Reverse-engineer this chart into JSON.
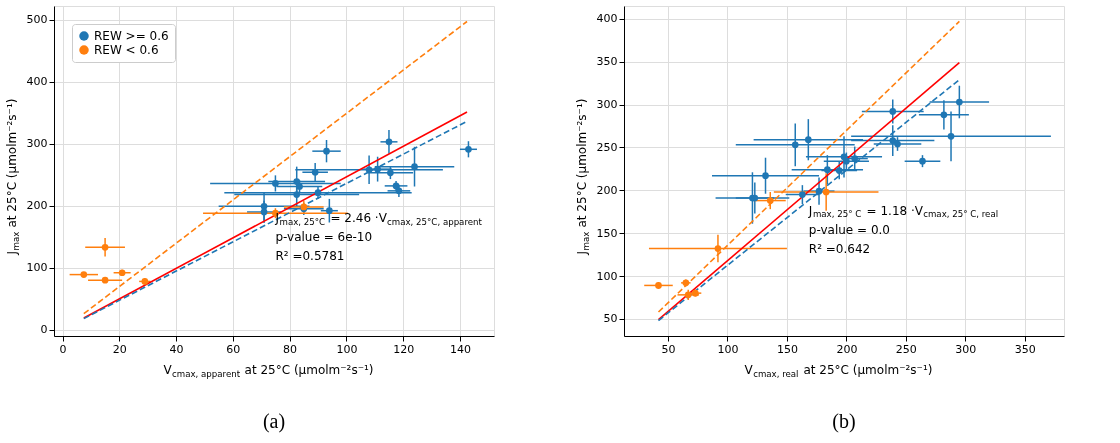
{
  "chart_data": [
    {
      "type": "scatter",
      "title": "(a)",
      "xlabel": "V$_{cmax, apparent}$ at 25°C (μmolm⁻²s⁻¹)",
      "ylabel": "J$_{max}$ at 25°C (μmolm⁻²s⁻¹)",
      "xlim": [
        -3,
        152
      ],
      "ylim": [
        -10,
        522
      ],
      "xticks": [
        0,
        20,
        40,
        60,
        80,
        100,
        120,
        140
      ],
      "yticks": [
        0,
        100,
        200,
        300,
        400,
        500
      ],
      "grid": true,
      "legend": "top left",
      "marker": "circle",
      "annotations": [
        {
          "text": "J$_{max, 25°C}$ = 2.46 ·V$_{cmax, 25°C, apparent}$",
          "x": 75,
          "y": 180
        },
        "p-value = 6e-10",
        "R² =0.5781"
      ],
      "series": [
        {
          "name": "REW >= 0.6",
          "type": "scatter",
          "color": "#1f77b4",
          "x": [
            115,
            93,
            143,
            89,
            108,
            111,
            115.5,
            124,
            75,
            82.5,
            83.5,
            82.5,
            90,
            117.5,
            118.5,
            71,
            71,
            85,
            94
          ],
          "values": [
            303,
            288,
            291,
            254,
            258,
            259,
            253,
            263,
            236,
            239,
            231,
            218,
            221,
            232,
            224,
            199,
            190,
            195,
            192
          ],
          "xerrors": [
            3,
            5,
            3,
            4.5,
            26,
            5,
            8,
            14,
            23,
            10,
            8,
            22,
            33,
            4,
            4,
            16,
            6,
            7,
            3
          ],
          "errors": [
            19,
            18,
            13,
            15,
            23,
            20,
            10,
            32,
            13,
            24,
            10,
            20,
            10,
            8,
            10,
            23,
            18,
            10,
            19
          ]
        },
        {
          "name": "REW < 0.6",
          "type": "scatter",
          "color": "#ff7f0e",
          "x": [
            15,
            7.5,
            15,
            21,
            29,
            75,
            85
          ],
          "values": [
            133,
            89,
            80,
            92,
            78,
            188,
            198
          ],
          "xerrors": [
            7,
            5,
            6,
            3,
            2,
            25.5,
            7
          ],
          "errors": [
            15,
            4,
            4,
            5,
            5,
            8,
            10
          ]
        },
        {
          "type": "line",
          "marker": "none",
          "color": "#ff0000",
          "line_style": "solid",
          "x": [
            7.5,
            142.5
          ],
          "values": [
            19,
            351
          ]
        },
        {
          "type": "line",
          "marker": "none",
          "color": "#1f77b4",
          "line_style": "dashed",
          "x": [
            7.5,
            142.5
          ],
          "values": [
            18,
            336
          ]
        },
        {
          "type": "line",
          "marker": "none",
          "color": "#ff7f0e",
          "line_style": "dashed",
          "x": [
            7.5,
            142.5
          ],
          "values": [
            26,
            497
          ]
        }
      ]
    },
    {
      "type": "scatter",
      "title": "(b)",
      "xlabel": "V$_{cmax, real}$ at 25°C (μmolm⁻²s⁻¹)",
      "ylabel": "J$_{max}$ at 25°C (μmolm⁻²s⁻¹)",
      "xlim": [
        13,
        383
      ],
      "ylim": [
        30,
        415
      ],
      "xticks": [
        50,
        100,
        150,
        200,
        250,
        300,
        350
      ],
      "yticks": [
        50,
        100,
        150,
        200,
        250,
        300,
        350,
        400
      ],
      "grid": true,
      "legend": "top left",
      "marker": "circle",
      "annotations": [
        "J$_{max, 25° C}$ = 1.18 ·V$_{cmax, 25° C, real}$",
        "p-value = 0.0",
        "R² =0.642"
      ],
      "series": [
        {
          "name": "REW >= 0.6",
          "type": "scatter",
          "color": "#1f77b4",
          "x": [
            239,
            295,
            282,
            288,
            239,
            243,
            157,
            168,
            198,
            207,
            200,
            184,
            194,
            264,
            132,
            121,
            123,
            163,
            177
          ],
          "values": [
            292,
            303,
            288,
            263,
            258,
            254,
            253,
            259,
            239,
            237,
            234,
            224,
            223,
            234,
            217,
            191,
            191,
            195,
            199
          ],
          "xerrors": [
            26,
            25,
            21,
            84,
            35,
            20,
            50,
            46,
            32,
            11,
            19,
            30,
            15,
            15,
            45,
            31,
            16,
            14,
            13
          ],
          "errors": [
            14,
            19,
            17,
            29,
            18,
            8,
            25,
            24,
            24,
            14,
            10,
            17,
            10,
            7,
            21,
            30,
            18,
            11,
            16
          ]
        },
        {
          "name": "REW < 0.6",
          "type": "scatter",
          "color": "#ff7f0e",
          "x": [
            183,
            136,
            92,
            42,
            65,
            67,
            73
          ],
          "values": [
            198,
            188,
            132,
            89,
            92,
            78,
            80
          ],
          "xerrors": [
            44,
            13,
            58,
            12,
            4,
            9,
            5
          ],
          "errors": [
            22,
            10,
            16,
            4,
            4,
            6,
            4
          ]
        },
        {
          "type": "line",
          "marker": "none",
          "color": "#ff0000",
          "line_style": "solid",
          "x": [
            42,
            295
          ],
          "values": [
            49,
            349
          ]
        },
        {
          "type": "line",
          "marker": "none",
          "color": "#1f77b4",
          "line_style": "dashed",
          "x": [
            42,
            295
          ],
          "values": [
            48,
            329
          ]
        },
        {
          "type": "line",
          "marker": "none",
          "color": "#ff7f0e",
          "line_style": "dashed",
          "x": [
            42,
            295
          ],
          "values": [
            58,
            397
          ]
        }
      ]
    }
  ]
}
